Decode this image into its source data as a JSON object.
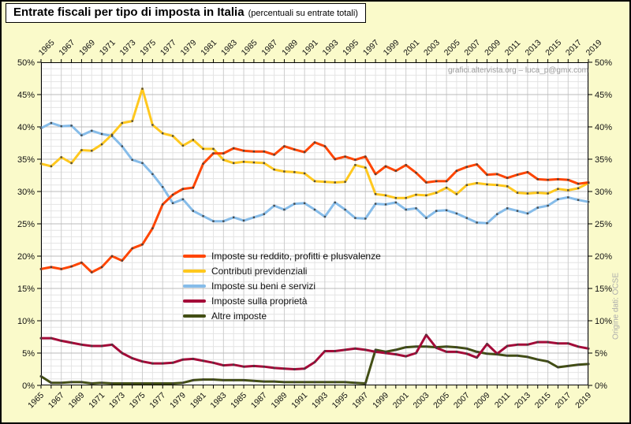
{
  "header": {
    "title": "Entrate fiscali per tipo di imposta in Italia",
    "subtitle": "(percentuali su entrate totali)"
  },
  "watermark": "grafici.altervista.org – luca_p@gmx.com",
  "source_note": "Origine dati: OCSE",
  "colors": {
    "page_background": "#FAFACA",
    "plot_background": "#FFFFFF",
    "grid_minor": "#E4E4E4",
    "grid_major": "#BBBBBB",
    "grid_year_labeled": "#CDCDCD",
    "axis": "#000000",
    "marker": "#3E3E3E",
    "watermark_text": "#9A9A9A"
  },
  "chart_data": {
    "type": "line",
    "title": "Entrate fiscali per tipo di imposta in Italia (percentuali su entrate totali)",
    "xlabel": "",
    "ylabel": "",
    "x": [
      1965,
      1966,
      1967,
      1968,
      1969,
      1970,
      1971,
      1972,
      1973,
      1974,
      1975,
      1976,
      1977,
      1978,
      1979,
      1980,
      1981,
      1982,
      1983,
      1984,
      1985,
      1986,
      1987,
      1988,
      1989,
      1990,
      1991,
      1992,
      1993,
      1994,
      1995,
      1996,
      1997,
      1998,
      1999,
      2000,
      2001,
      2002,
      2003,
      2004,
      2005,
      2006,
      2007,
      2008,
      2009,
      2010,
      2011,
      2012,
      2013,
      2014,
      2015,
      2016,
      2017,
      2018,
      2019
    ],
    "ylim": [
      0,
      50
    ],
    "ytick_step": 5,
    "ytick_suffix": "%",
    "xtick_label_step": 2,
    "grid": true,
    "legend_position": "inside-center-left",
    "axis_labels_on_both_sides": true,
    "series": [
      {
        "name": "Imposte su reddito, profitti e plusvalenze",
        "color": "#FF4500",
        "values": [
          18.0,
          18.3,
          18.0,
          18.4,
          19.0,
          17.5,
          18.3,
          20.0,
          19.3,
          21.2,
          21.8,
          24.3,
          28.0,
          29.5,
          30.4,
          30.6,
          34.3,
          35.9,
          35.9,
          36.7,
          36.3,
          36.2,
          36.2,
          35.7,
          37.0,
          36.5,
          36.1,
          37.6,
          37.0,
          35.0,
          35.4,
          34.9,
          35.4,
          32.7,
          33.9,
          33.2,
          34.1,
          32.9,
          31.4,
          31.6,
          31.6,
          33.2,
          33.8,
          34.2,
          32.6,
          32.7,
          32.1,
          32.6,
          33.0,
          31.9,
          31.8,
          31.9,
          31.8,
          31.2,
          31.4
        ]
      },
      {
        "name": "Contributi previdenziali",
        "color": "#FFC81E",
        "values": [
          34.3,
          33.9,
          35.3,
          34.4,
          36.4,
          36.3,
          37.3,
          38.8,
          40.6,
          40.9,
          45.9,
          40.3,
          39.0,
          38.6,
          37.1,
          38.0,
          36.6,
          36.6,
          34.9,
          34.4,
          34.6,
          34.5,
          34.4,
          33.4,
          33.1,
          33.0,
          32.8,
          31.6,
          31.5,
          31.4,
          31.5,
          34.1,
          33.7,
          29.6,
          29.4,
          29.0,
          29.0,
          29.5,
          29.4,
          29.8,
          30.6,
          29.6,
          31.0,
          31.3,
          31.1,
          31.0,
          30.8,
          29.8,
          29.7,
          29.8,
          29.7,
          30.4,
          30.2,
          30.5,
          31.3
        ]
      },
      {
        "name": "Imposte su beni e servizi",
        "color": "#86BCE9",
        "values": [
          39.8,
          40.6,
          40.1,
          40.2,
          38.7,
          39.4,
          38.9,
          38.6,
          37.0,
          34.9,
          34.4,
          32.7,
          30.7,
          28.2,
          28.8,
          27.0,
          26.2,
          25.4,
          25.4,
          26.0,
          25.5,
          26.0,
          26.5,
          27.8,
          27.2,
          28.1,
          28.2,
          27.2,
          26.1,
          28.3,
          27.2,
          25.9,
          25.8,
          28.1,
          28.0,
          28.3,
          27.2,
          27.4,
          25.9,
          27.0,
          27.1,
          26.6,
          25.9,
          25.2,
          25.1,
          26.5,
          27.4,
          27.0,
          26.6,
          27.5,
          27.8,
          28.8,
          29.1,
          28.7,
          28.4
        ]
      },
      {
        "name": "Imposte sulla proprietà",
        "color": "#A40A38",
        "values": [
          7.3,
          7.3,
          6.9,
          6.6,
          6.3,
          6.1,
          6.1,
          6.3,
          5.0,
          4.2,
          3.7,
          3.4,
          3.4,
          3.5,
          4.0,
          4.1,
          3.8,
          3.5,
          3.1,
          3.2,
          2.9,
          3.0,
          2.9,
          2.7,
          2.6,
          2.5,
          2.6,
          3.6,
          5.3,
          5.3,
          5.5,
          5.7,
          5.5,
          5.2,
          5.0,
          4.8,
          4.5,
          5.0,
          7.8,
          5.8,
          5.2,
          5.2,
          4.9,
          4.3,
          6.4,
          4.9,
          6.1,
          6.3,
          6.3,
          6.7,
          6.7,
          6.5,
          6.5,
          6.0,
          5.7
        ]
      },
      {
        "name": "Altre imposte",
        "color": "#424E14",
        "values": [
          1.4,
          0.4,
          0.4,
          0.5,
          0.5,
          0.3,
          0.4,
          0.3,
          0.3,
          0.3,
          0.3,
          0.3,
          0.3,
          0.3,
          0.4,
          0.8,
          0.9,
          0.9,
          0.8,
          0.8,
          0.8,
          0.7,
          0.6,
          0.6,
          0.5,
          0.5,
          0.5,
          0.5,
          0.5,
          0.5,
          0.5,
          0.4,
          0.3,
          5.5,
          5.2,
          5.5,
          5.9,
          6.0,
          6.0,
          5.9,
          6.0,
          5.9,
          5.7,
          5.2,
          4.9,
          4.8,
          4.6,
          4.6,
          4.4,
          4.0,
          3.7,
          2.8,
          3.0,
          3.2,
          3.3
        ]
      }
    ]
  }
}
